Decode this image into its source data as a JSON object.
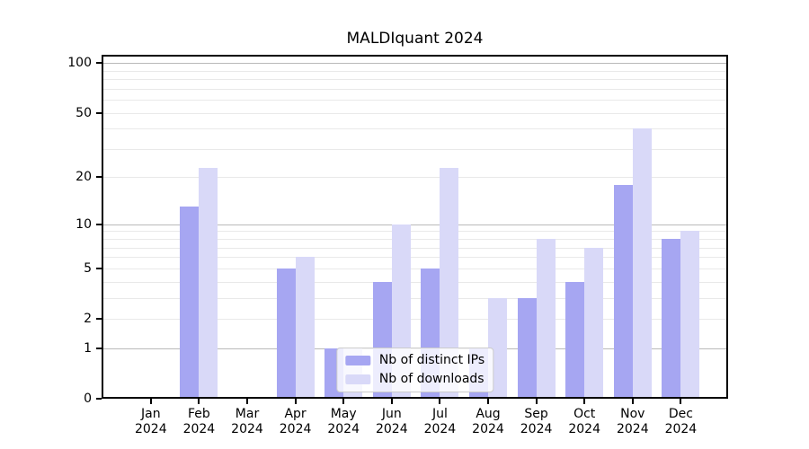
{
  "title": "MALDIquant 2024",
  "chart_data": {
    "type": "bar",
    "title": "MALDIquant 2024",
    "categories": [
      "Jan 2024",
      "Feb 2024",
      "Mar 2024",
      "Apr 2024",
      "May 2024",
      "Jun 2024",
      "Jul 2024",
      "Aug 2024",
      "Sep 2024",
      "Oct 2024",
      "Nov 2024",
      "Dec 2024"
    ],
    "x_months": [
      "Jan",
      "Feb",
      "Mar",
      "Apr",
      "May",
      "Jun",
      "Jul",
      "Aug",
      "Sep",
      "Oct",
      "Nov",
      "Dec"
    ],
    "x_year": "2024",
    "series": [
      {
        "name": "Nb of distinct IPs",
        "color": "#a6a6f2",
        "values": [
          0,
          13,
          0,
          5,
          1,
          4,
          5,
          1,
          3,
          4,
          18,
          8
        ]
      },
      {
        "name": "Nb of downloads",
        "color": "#d9d9f8",
        "values": [
          0,
          23,
          0,
          6,
          1,
          10,
          23,
          3,
          8,
          7,
          40,
          9
        ]
      }
    ],
    "yscale": "log1p",
    "ylim": [
      0,
      112
    ],
    "y_ticks": [
      {
        "label": "100",
        "value": 100
      },
      {
        "label": "50",
        "value": 50
      },
      {
        "label": "20",
        "value": 20
      },
      {
        "label": "10",
        "value": 10
      },
      {
        "label": "5",
        "value": 5
      },
      {
        "label": "2",
        "value": 2
      },
      {
        "label": "1",
        "value": 1
      },
      {
        "label": "0",
        "value": 0
      }
    ],
    "y_major_gridlines": [
      1,
      10,
      100
    ],
    "y_minor_gridlines": [
      2,
      3,
      4,
      5,
      6,
      7,
      8,
      9,
      20,
      30,
      40,
      50,
      60,
      70,
      80,
      90
    ],
    "grid": "both",
    "legend_position": "lower center",
    "colors": {
      "major_grid": "#b9b9b9",
      "minor_grid": "#e9e9e9",
      "frame": "#000000",
      "text": "#000000",
      "background": "#ffffff"
    }
  }
}
